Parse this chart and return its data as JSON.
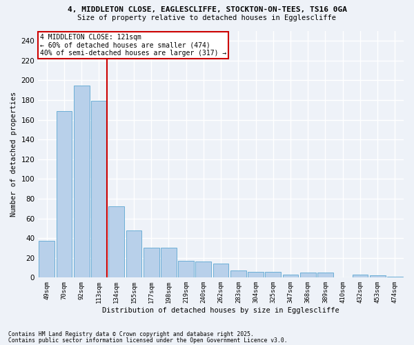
{
  "title_line1": "4, MIDDLETON CLOSE, EAGLESCLIFFE, STOCKTON-ON-TEES, TS16 0GA",
  "title_line2": "Size of property relative to detached houses in Egglescliffe",
  "xlabel": "Distribution of detached houses by size in Egglescliffe",
  "ylabel": "Number of detached properties",
  "categories": [
    "49sqm",
    "70sqm",
    "92sqm",
    "113sqm",
    "134sqm",
    "155sqm",
    "177sqm",
    "198sqm",
    "219sqm",
    "240sqm",
    "262sqm",
    "283sqm",
    "304sqm",
    "325sqm",
    "347sqm",
    "368sqm",
    "389sqm",
    "410sqm",
    "432sqm",
    "453sqm",
    "474sqm"
  ],
  "values": [
    37,
    169,
    195,
    179,
    72,
    48,
    30,
    30,
    17,
    16,
    14,
    7,
    6,
    6,
    3,
    5,
    5,
    0,
    3,
    2,
    1
  ],
  "bar_color": "#b8d0ea",
  "bar_edge_color": "#6baed6",
  "vline_color": "#cc0000",
  "annotation_title": "4 MIDDLETON CLOSE: 121sqm",
  "annotation_line1": "← 60% of detached houses are smaller (474)",
  "annotation_line2": "40% of semi-detached houses are larger (317) →",
  "annotation_box_color": "#ffffff",
  "annotation_box_edge": "#cc0000",
  "ylim": [
    0,
    250
  ],
  "yticks": [
    0,
    20,
    40,
    60,
    80,
    100,
    120,
    140,
    160,
    180,
    200,
    220,
    240
  ],
  "footnote1": "Contains HM Land Registry data © Crown copyright and database right 2025.",
  "footnote2": "Contains public sector information licensed under the Open Government Licence v3.0.",
  "bg_color": "#eef2f8",
  "grid_color": "#ffffff"
}
